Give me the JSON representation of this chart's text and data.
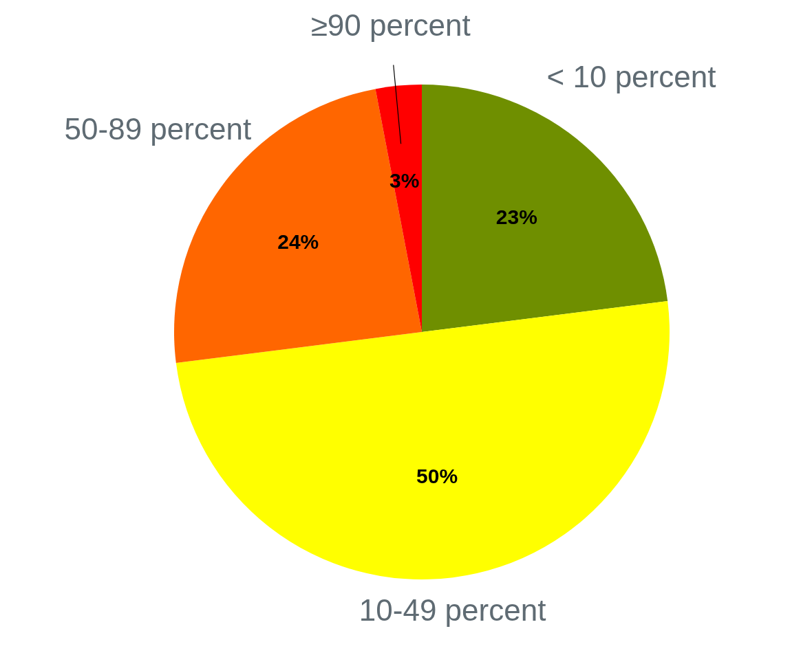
{
  "chart_data": {
    "type": "pie",
    "categories": [
      "< 10 percent",
      "10-49 percent",
      "50-89 percent",
      "≥90 percent"
    ],
    "values": [
      23,
      50,
      24,
      3
    ],
    "value_labels": [
      "23%",
      "50%",
      "24%",
      "3%"
    ],
    "colors": [
      "#6f8f00",
      "#ffff00",
      "#ff6600",
      "#ff0000"
    ]
  }
}
